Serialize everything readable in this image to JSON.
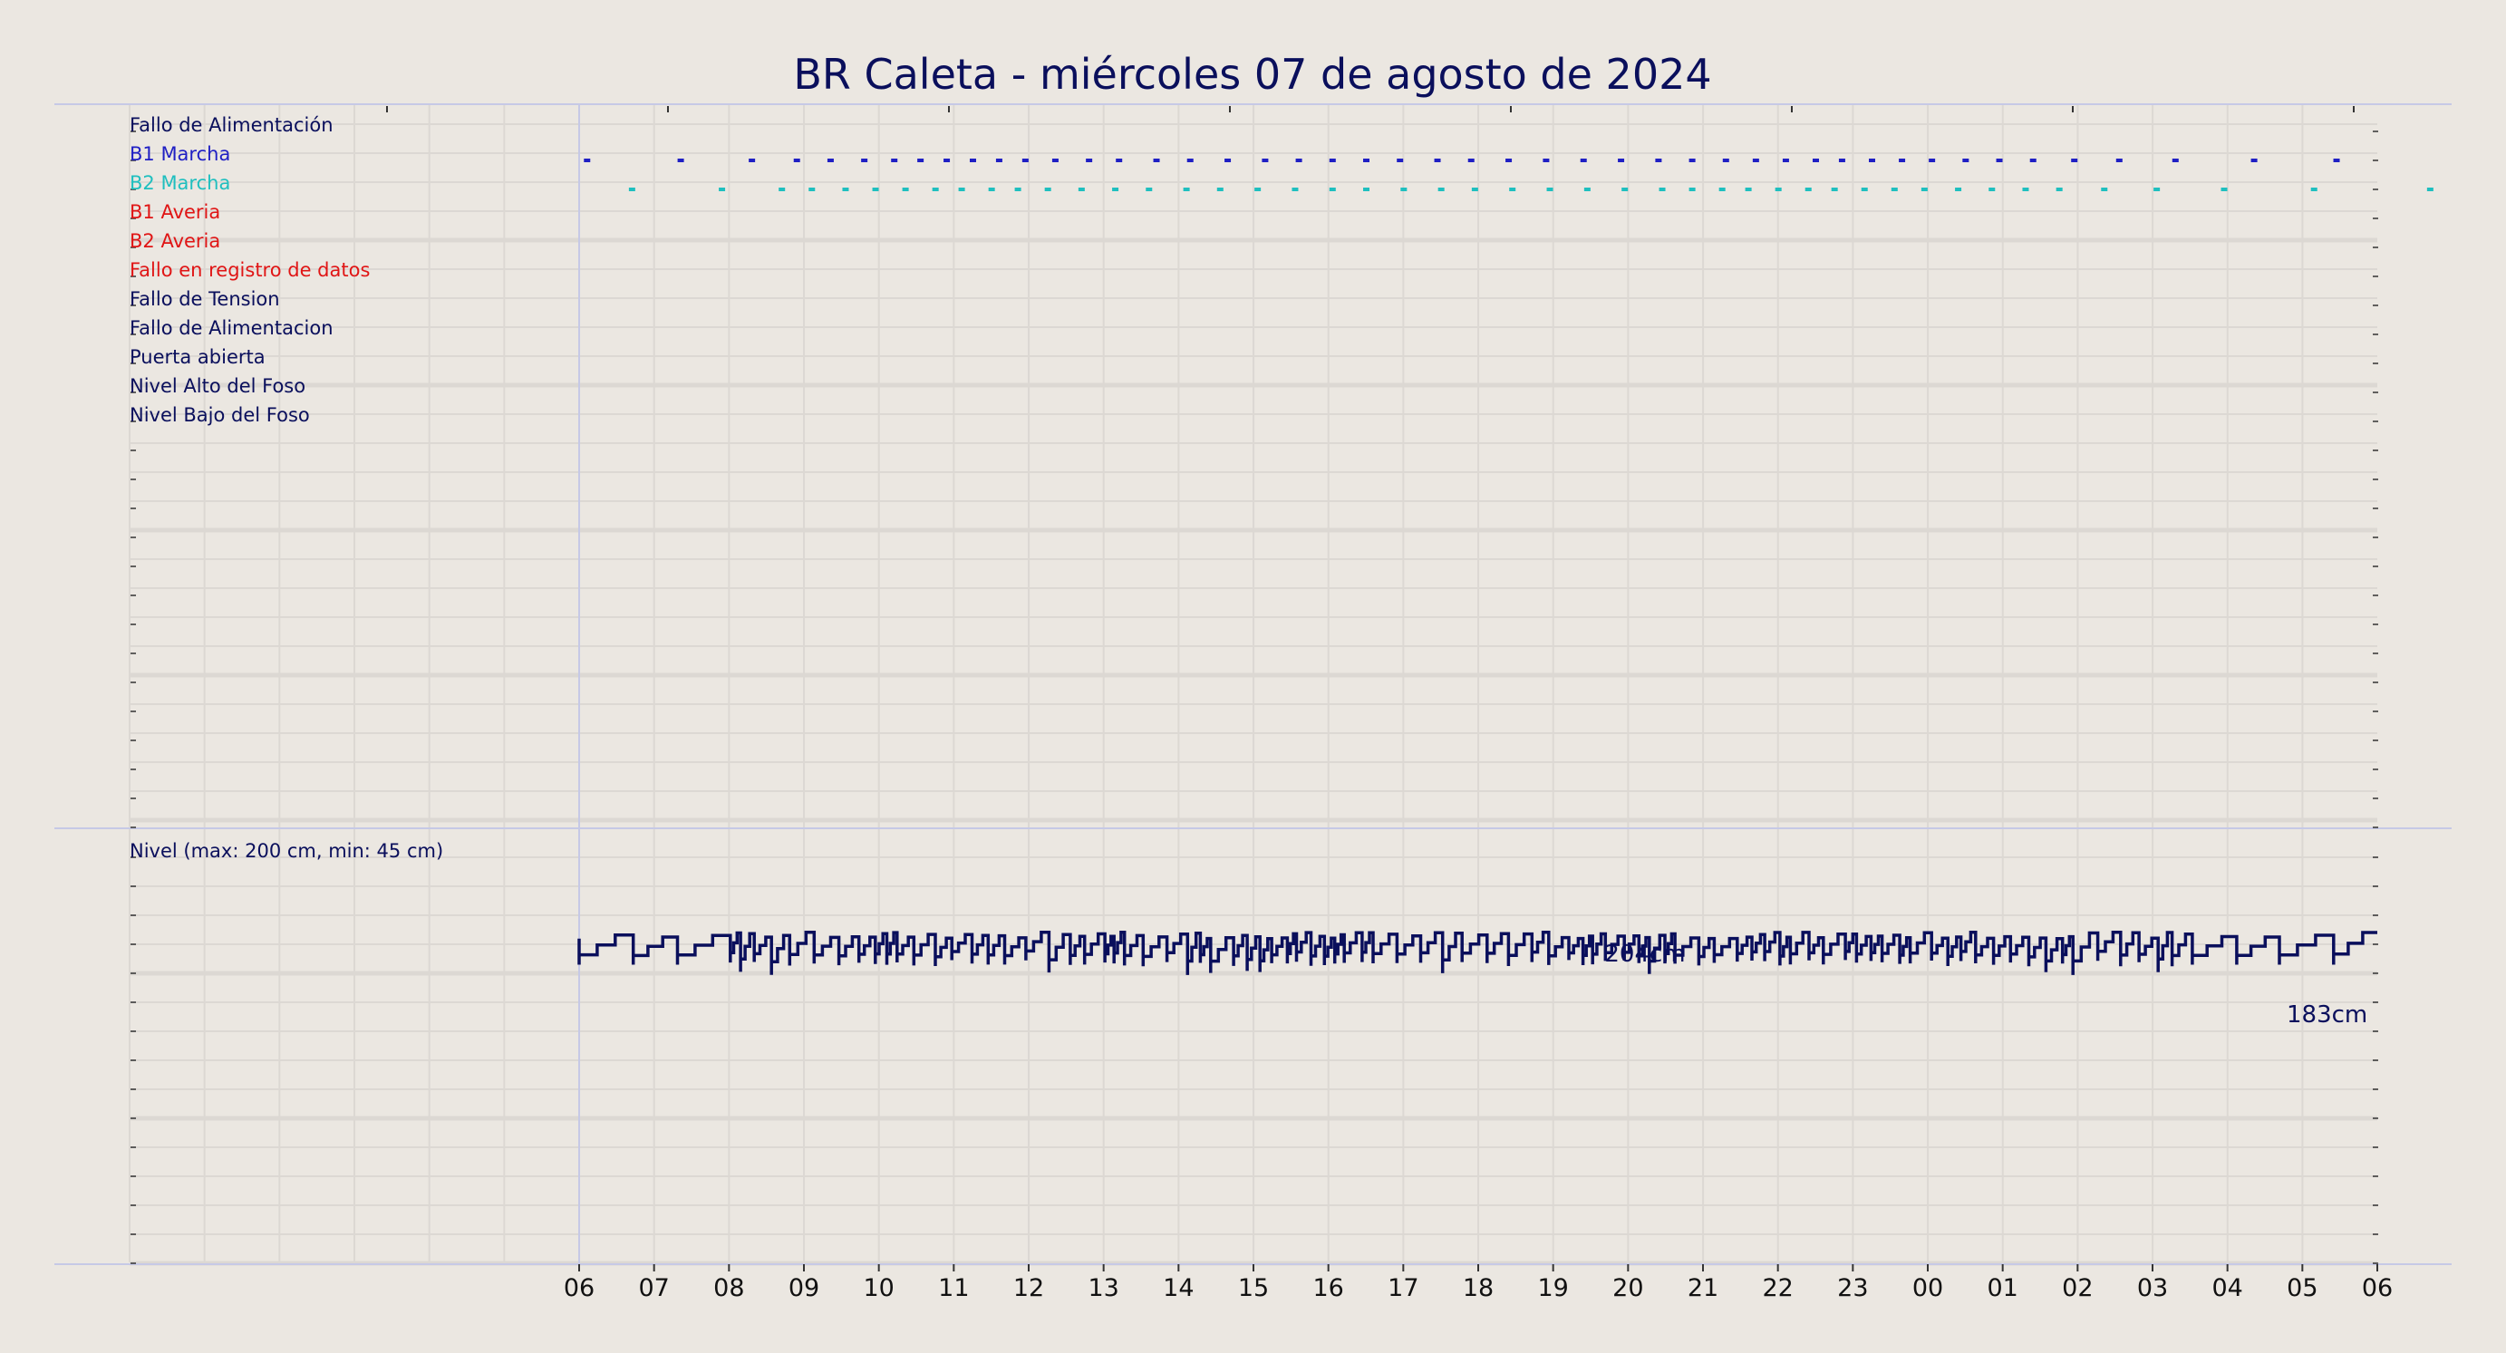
{
  "title": "BR Caleta   -   miércoles 07 de agosto de 2024",
  "colors": {
    "background": "#ebe7e1",
    "grid": "#dcd8d3",
    "frame": "#c6c9e6",
    "navy": "#0a0f5c",
    "blue": "#1f1fc4",
    "cyan": "#1fbfbf",
    "red": "#e01515"
  },
  "chart_data": [
    {
      "type": "line",
      "name": "signals",
      "signals": [
        {
          "label": "Fallo de Alimentación",
          "color": "#0a0f5c",
          "events": []
        },
        {
          "label": "B1 Marcha",
          "color": "#1f1fc4",
          "events": [
            0.1,
            1.35,
            2.3,
            2.9,
            3.35,
            3.8,
            4.2,
            4.55,
            4.9,
            5.25,
            5.6,
            5.95,
            6.35,
            6.8,
            7.2,
            7.7,
            8.15,
            8.65,
            9.15,
            9.6,
            10.05,
            10.5,
            10.95,
            11.45,
            11.9,
            12.4,
            12.9,
            13.4,
            13.9,
            14.4,
            14.85,
            15.3,
            15.7,
            16.1,
            16.5,
            16.85,
            17.25,
            17.65,
            18.05,
            18.5,
            18.95,
            19.4,
            19.95,
            20.55,
            21.3,
            22.35,
            23.45
          ]
        },
        {
          "label": "B2 Marcha",
          "color": "#1fbfbf",
          "events": [
            0.7,
            1.9,
            2.7,
            3.1,
            3.55,
            3.95,
            4.35,
            4.75,
            5.1,
            5.5,
            5.85,
            6.25,
            6.7,
            7.15,
            7.6,
            8.1,
            8.55,
            9.05,
            9.55,
            10.05,
            10.5,
            11,
            11.5,
            11.95,
            12.45,
            12.95,
            13.45,
            13.95,
            14.45,
            14.85,
            15.25,
            15.6,
            16,
            16.4,
            16.75,
            17.15,
            17.55,
            17.95,
            18.4,
            18.85,
            19.3,
            19.75,
            20.35,
            21.05,
            21.95,
            23.15,
            24.7
          ]
        },
        {
          "label": "B1 Averia",
          "color": "#e01515",
          "events": []
        },
        {
          "label": "B2 Averia",
          "color": "#e01515",
          "events": []
        },
        {
          "label": "Fallo en registro de datos",
          "color": "#e01515",
          "events": []
        },
        {
          "label": "Fallo de Tension",
          "color": "#0a0f5c",
          "events": []
        },
        {
          "label": "Fallo de Alimentacion",
          "color": "#0a0f5c",
          "events": []
        },
        {
          "label": "Puerta abierta",
          "color": "#0a0f5c",
          "events": []
        },
        {
          "label": "Nivel Alto del Foso",
          "color": "#0a0f5c",
          "events": []
        },
        {
          "label": "Nivel Bajo del Foso",
          "color": "#0a0f5c",
          "events": []
        }
      ],
      "x_ticks": [
        "06",
        "07",
        "08",
        "09",
        "10",
        "11",
        "12",
        "13",
        "14",
        "15",
        "16",
        "17",
        "18",
        "19",
        "20",
        "21",
        "22",
        "23",
        "00",
        "01",
        "02",
        "03",
        "04",
        "05",
        "06"
      ],
      "x_range_hours": [
        -6,
        24
      ]
    },
    {
      "type": "line",
      "name": "nivel",
      "label": "Nivel (max: 200 cm, min: 45 cm)",
      "max_label": "204cm",
      "last_label": "183cm",
      "max_value": 204,
      "min_value": 183,
      "y_range": [
        0,
        250
      ],
      "x_range_hours": [
        -6,
        24
      ],
      "series": {
        "color": "#0a0f5c"
      }
    }
  ]
}
